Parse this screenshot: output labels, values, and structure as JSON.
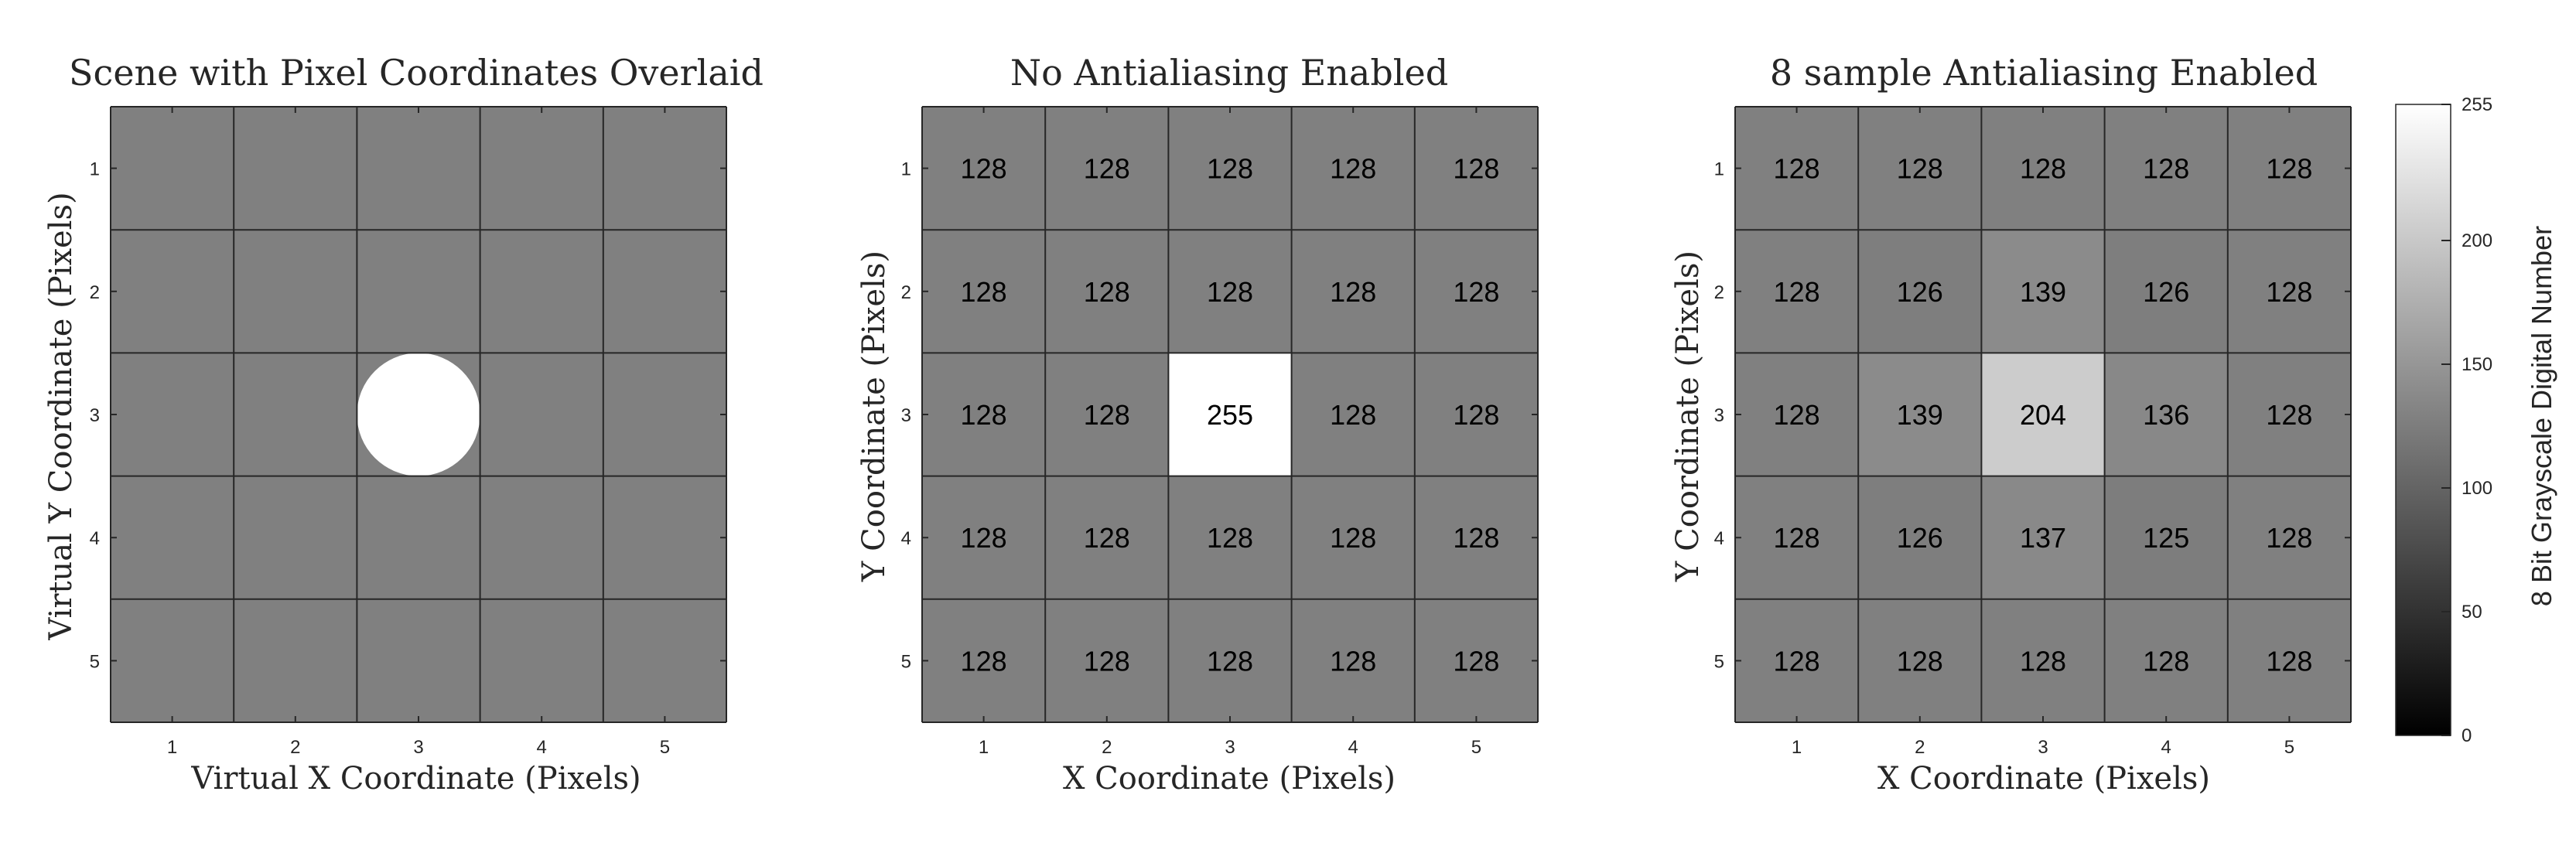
{
  "chart_data": [
    {
      "type": "heatmap",
      "title": "Scene with Pixel Coordinates Overlaid",
      "xlabel": "Virtual X Coordinate (Pixels)",
      "ylabel": "Virtual Y Coordinate (Pixels)",
      "x_ticks": [
        "1",
        "2",
        "3",
        "4",
        "5"
      ],
      "y_ticks": [
        "1",
        "2",
        "3",
        "4",
        "5"
      ],
      "xlim": [
        0.5,
        5.5
      ],
      "ylim": [
        0.5,
        5.5
      ],
      "y_direction": "reverse",
      "background_value": 128,
      "circle": {
        "center": [
          3,
          3
        ],
        "radius": 0.5,
        "value": 255
      },
      "show_values": false
    },
    {
      "type": "heatmap",
      "title": "No Antialiasing Enabled",
      "xlabel": "X Coordinate (Pixels)",
      "ylabel": "Y Coordinate (Pixels)",
      "x_ticks": [
        "1",
        "2",
        "3",
        "4",
        "5"
      ],
      "y_ticks": [
        "1",
        "2",
        "3",
        "4",
        "5"
      ],
      "xlim": [
        0.5,
        5.5
      ],
      "ylim": [
        0.5,
        5.5
      ],
      "y_direction": "reverse",
      "values": [
        [
          128,
          128,
          128,
          128,
          128
        ],
        [
          128,
          128,
          128,
          128,
          128
        ],
        [
          128,
          128,
          255,
          128,
          128
        ],
        [
          128,
          128,
          128,
          128,
          128
        ],
        [
          128,
          128,
          128,
          128,
          128
        ]
      ],
      "show_values": true
    },
    {
      "type": "heatmap",
      "title": "8 sample Antialiasing Enabled",
      "xlabel": "X Coordinate (Pixels)",
      "ylabel": "Y Coordinate (Pixels)",
      "x_ticks": [
        "1",
        "2",
        "3",
        "4",
        "5"
      ],
      "y_ticks": [
        "1",
        "2",
        "3",
        "4",
        "5"
      ],
      "xlim": [
        0.5,
        5.5
      ],
      "ylim": [
        0.5,
        5.5
      ],
      "y_direction": "reverse",
      "values": [
        [
          128,
          128,
          128,
          128,
          128
        ],
        [
          128,
          126,
          139,
          126,
          128
        ],
        [
          128,
          139,
          204,
          136,
          128
        ],
        [
          128,
          126,
          137,
          125,
          128
        ],
        [
          128,
          128,
          128,
          128,
          128
        ]
      ],
      "show_values": true
    }
  ],
  "colorbar": {
    "label": "8 Bit Grayscale Digital Number",
    "range": [
      0,
      255
    ],
    "ticks": [
      "0",
      "50",
      "100",
      "150",
      "200",
      "255"
    ],
    "colormap": "gray"
  },
  "colors": {
    "grid_line": "#262626",
    "axis_text": "#262626",
    "cell_text": "#000000"
  }
}
